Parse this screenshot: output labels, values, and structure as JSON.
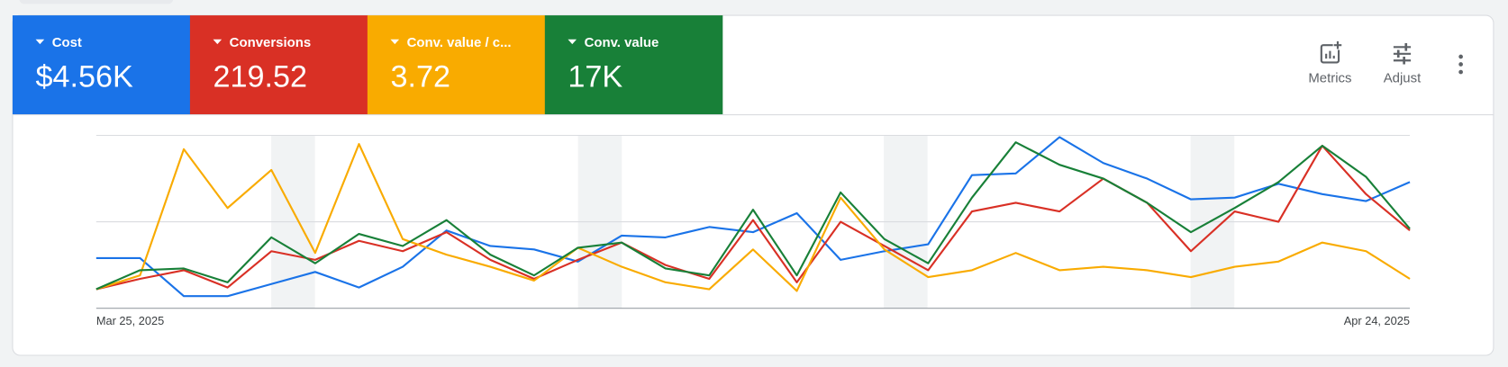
{
  "toolbar": [
    "Metrics",
    "Adjust"
  ],
  "chart_data": {
    "type": "line",
    "categories": [
      "Mar 25, 2025",
      null,
      null,
      null,
      null,
      null,
      null,
      null,
      null,
      null,
      null,
      null,
      null,
      null,
      null,
      null,
      null,
      null,
      null,
      null,
      null,
      null,
      null,
      null,
      null,
      null,
      null,
      null,
      null,
      null,
      "Apr 24, 2025"
    ],
    "ylim": [
      0,
      100
    ],
    "yticks": [
      0,
      50,
      100
    ],
    "grid": true,
    "series": [
      {
        "name": "Cost",
        "total": "$4.56K",
        "color": "#1a73e8",
        "values": [
          29,
          29,
          7,
          7,
          14,
          21,
          12,
          24,
          45,
          36,
          34,
          27,
          42,
          41,
          47,
          44,
          55,
          28,
          33,
          37,
          77,
          78,
          99,
          84,
          75,
          63,
          64,
          72,
          66,
          62,
          73
        ]
      },
      {
        "name": "Conversions",
        "total": "219.52",
        "color": "#d93025",
        "values": [
          11,
          17,
          22,
          12,
          33,
          28,
          39,
          33,
          44,
          28,
          17,
          28,
          38,
          25,
          17,
          51,
          15,
          50,
          36,
          22,
          56,
          61,
          56,
          75,
          61,
          33,
          56,
          50,
          94,
          66,
          45
        ]
      },
      {
        "name": "Conv. value / c...",
        "total": "3.72",
        "color": "#f9ab00",
        "values": [
          11,
          19,
          92,
          58,
          80,
          32,
          95,
          40,
          31,
          24,
          16,
          35,
          24,
          15,
          11,
          34,
          10,
          64,
          34,
          18,
          22,
          32,
          22,
          24,
          22,
          18,
          24,
          27,
          38,
          33,
          17
        ]
      },
      {
        "name": "Conv. value",
        "total": "17K",
        "color": "#188038",
        "values": [
          11,
          22,
          23,
          15,
          41,
          26,
          43,
          36,
          51,
          31,
          19,
          35,
          38,
          23,
          19,
          57,
          19,
          67,
          40,
          26,
          64,
          96,
          83,
          75,
          61,
          44,
          58,
          73,
          94,
          76,
          46
        ]
      }
    ]
  }
}
